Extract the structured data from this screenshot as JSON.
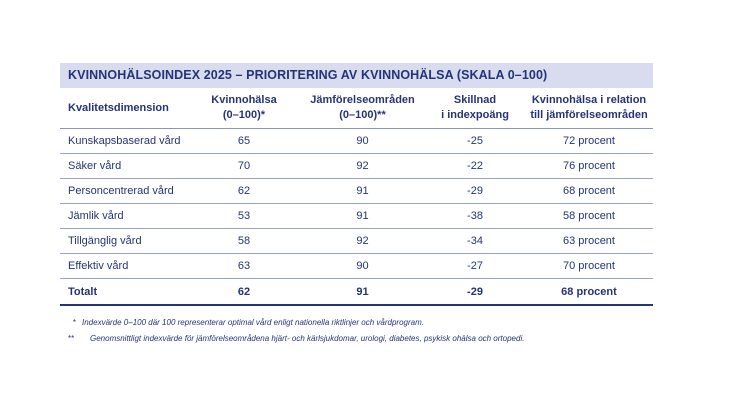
{
  "title": "KVINNOHÄLSOINDEX 2025 – PRIORITERING AV KVINNOHÄLSA (SKALA 0–100)",
  "headers": [
    [
      "Kvalitetsdimension"
    ],
    [
      "Kvinnohälsa",
      "(0–100)*"
    ],
    [
      "Jämförelseområden",
      "(0–100)**"
    ],
    [
      "Skillnad",
      "i indexpoäng"
    ],
    [
      "Kvinnohälsa i relation",
      "till jämförelseområden"
    ]
  ],
  "rows": [
    [
      "Kunskapsbaserad vård",
      "65",
      "90",
      "-25",
      "72 procent"
    ],
    [
      "Säker vård",
      "70",
      "92",
      "-22",
      "76 procent"
    ],
    [
      "Personcentrerad vård",
      "62",
      "91",
      "-29",
      "68 procent"
    ],
    [
      "Jämlik vård",
      "53",
      "91",
      "-38",
      "58 procent"
    ],
    [
      "Tillgänglig vård",
      "58",
      "92",
      "-34",
      "63 procent"
    ],
    [
      "Effektiv vård",
      "63",
      "90",
      "-27",
      "70 procent"
    ]
  ],
  "total": [
    "Totalt",
    "62",
    "91",
    "-29",
    "68 procent"
  ],
  "footnotes": [
    {
      "mark": "*",
      "text": "Indexvärde 0–100 där 100 representerar optimal vård enligt nationella riktlinjer och vårdprogram."
    },
    {
      "mark": "**",
      "text": "Genomsnittligt indexvärde för jämförelseområdena hjärt- och kärlsjukdomar, urologi, diabetes, psykisk ohälsa och ortopedi."
    }
  ]
}
